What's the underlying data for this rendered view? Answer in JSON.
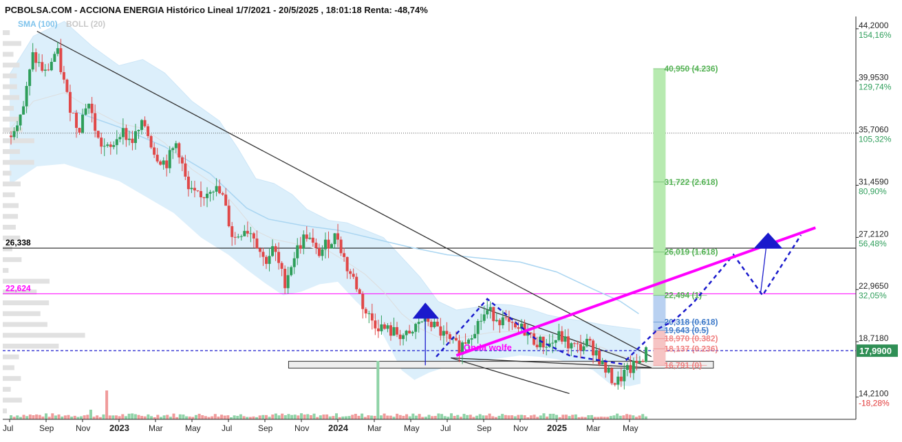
{
  "title": "PCBOLSA.COM - ACCIONA ENERGIA Histórico Lineal 1/7/2021 - 20/5/2025 , 18:01:18 Renta: -48,74%",
  "legend": {
    "sma": "SMA (100)",
    "boll": "BOLL (20)"
  },
  "chart_data": {
    "type": "candlestick",
    "price_axis": [
      {
        "price": 44.2,
        "label": "44,2000",
        "pct": "154,16%"
      },
      {
        "price": 39.953,
        "label": "39,9530",
        "pct": "129,74%"
      },
      {
        "price": 35.706,
        "label": "35,7060",
        "pct": "105,32%"
      },
      {
        "price": 31.459,
        "label": "31,4590",
        "pct": "80,90%"
      },
      {
        "price": 27.212,
        "label": "27,2120",
        "pct": "56,48%"
      },
      {
        "price": 22.965,
        "label": "22,9650",
        "pct": "32,05%"
      },
      {
        "price": 18.718,
        "label": "18,7180",
        "pct": "7,63%"
      },
      {
        "price": 14.21,
        "label": "14,2100",
        "pct": "-18,28%"
      }
    ],
    "ylim": [
      12.4,
      45.2
    ],
    "x_months": 47,
    "x_ticks": [
      {
        "m": 0,
        "label": "Jul",
        "bold": false
      },
      {
        "m": 2,
        "label": "Sep",
        "bold": false
      },
      {
        "m": 4,
        "label": "Nov",
        "bold": false
      },
      {
        "m": 6,
        "label": "2023",
        "bold": true
      },
      {
        "m": 8,
        "label": "Mar",
        "bold": false
      },
      {
        "m": 10,
        "label": "May",
        "bold": false
      },
      {
        "m": 12,
        "label": "Jul",
        "bold": false
      },
      {
        "m": 14,
        "label": "Sep",
        "bold": false
      },
      {
        "m": 16,
        "label": "Nov",
        "bold": false
      },
      {
        "m": 18,
        "label": "2024",
        "bold": true
      },
      {
        "m": 20,
        "label": "Mar",
        "bold": false
      },
      {
        "m": 22,
        "label": "May",
        "bold": false
      },
      {
        "m": 24,
        "label": "Jul",
        "bold": false
      },
      {
        "m": 26,
        "label": "Sep",
        "bold": false
      },
      {
        "m": 28,
        "label": "Nov",
        "bold": false
      },
      {
        "m": 30,
        "label": "2025",
        "bold": true
      },
      {
        "m": 32,
        "label": "Mar",
        "bold": false
      },
      {
        "m": 34,
        "label": "May",
        "bold": false
      }
    ],
    "close_path": [
      [
        0,
        35.5
      ],
      [
        0.8,
        38
      ],
      [
        1.3,
        42
      ],
      [
        2,
        40.5
      ],
      [
        2.6,
        42.5
      ],
      [
        3.2,
        38.5
      ],
      [
        3.8,
        36
      ],
      [
        4.3,
        38.5
      ],
      [
        4.9,
        35
      ],
      [
        5.5,
        34.2
      ],
      [
        6.1,
        36
      ],
      [
        6.7,
        35
      ],
      [
        7.4,
        36.5
      ],
      [
        8,
        34
      ],
      [
        8.6,
        33.2
      ],
      [
        9.2,
        35
      ],
      [
        9.8,
        31
      ],
      [
        10.5,
        30.3
      ],
      [
        11.1,
        31.5
      ],
      [
        11.7,
        30.5
      ],
      [
        12.3,
        27
      ],
      [
        12.9,
        28
      ],
      [
        13.4,
        27.5
      ],
      [
        14,
        25.2
      ],
      [
        14.5,
        26.3
      ],
      [
        15.1,
        23.5
      ],
      [
        15.7,
        26
      ],
      [
        16.3,
        27.5
      ],
      [
        16.9,
        25.8
      ],
      [
        17.5,
        26.8
      ],
      [
        18,
        27.4
      ],
      [
        18.5,
        24.8
      ],
      [
        19,
        23.5
      ],
      [
        19.5,
        21.2
      ],
      [
        20,
        20.3
      ],
      [
        20.5,
        19.8
      ],
      [
        21,
        19.5
      ],
      [
        21.5,
        19.3
      ],
      [
        22,
        19
      ],
      [
        22.4,
        20.3
      ],
      [
        22.9,
        20.6
      ],
      [
        23.4,
        19.8
      ],
      [
        23.8,
        19.3
      ],
      [
        24.2,
        18.6
      ],
      [
        24.7,
        18.2
      ],
      [
        25.2,
        19.2
      ],
      [
        25.7,
        20.2
      ],
      [
        26.2,
        21.2
      ],
      [
        26.7,
        20.8
      ],
      [
        27.2,
        20.3
      ],
      [
        27.7,
        19.6
      ],
      [
        28.2,
        19.8
      ],
      [
        28.7,
        18.9
      ],
      [
        29.2,
        18.6
      ],
      [
        29.7,
        18.5
      ],
      [
        30.2,
        19.2
      ],
      [
        30.7,
        18.4
      ],
      [
        31.2,
        18.2
      ],
      [
        31.7,
        18.6
      ],
      [
        32.2,
        17.9
      ],
      [
        32.6,
        16.6
      ],
      [
        33,
        15.8
      ],
      [
        33.3,
        15.3
      ],
      [
        33.7,
        16.1
      ],
      [
        34.2,
        16.6
      ],
      [
        34.6,
        17.2
      ],
      [
        35,
        17.99
      ]
    ],
    "sma_path": [
      [
        3.5,
        37.5
      ],
      [
        6,
        36.2
      ],
      [
        8.5,
        34.6
      ],
      [
        11,
        32.4
      ],
      [
        13,
        29.6
      ],
      [
        14.2,
        28.7
      ],
      [
        16,
        28.2
      ],
      [
        18,
        27.8
      ],
      [
        20,
        27.1
      ],
      [
        22,
        26.4
      ],
      [
        24,
        25.8
      ],
      [
        26,
        25.5
      ],
      [
        28,
        25.2
      ],
      [
        30,
        24.4
      ],
      [
        32,
        23
      ],
      [
        33.5,
        22
      ],
      [
        34.5,
        21
      ]
    ],
    "bollinger": {
      "upper": [
        [
          0,
          40.5
        ],
        [
          1.3,
          43.6
        ],
        [
          3,
          44.8
        ],
        [
          4.5,
          42.8
        ],
        [
          6,
          41.2
        ],
        [
          7.3,
          41.7
        ],
        [
          8.5,
          40.6
        ],
        [
          10,
          38.3
        ],
        [
          11.5,
          36.7
        ],
        [
          12.5,
          34.5
        ],
        [
          13.5,
          32
        ],
        [
          14.5,
          31.6
        ],
        [
          15.5,
          30.7
        ],
        [
          16.3,
          29.5
        ],
        [
          17.5,
          28.6
        ],
        [
          18.5,
          28.4
        ],
        [
          19.5,
          27.8
        ],
        [
          20.5,
          27.2
        ],
        [
          21.5,
          25.6
        ],
        [
          22.5,
          24
        ],
        [
          23.5,
          22
        ],
        [
          24.5,
          21.3
        ],
        [
          25.5,
          21.5
        ],
        [
          26.5,
          21.8
        ],
        [
          27.5,
          21.7
        ],
        [
          28.5,
          21.4
        ],
        [
          29.5,
          20.9
        ],
        [
          30.5,
          20.6
        ],
        [
          31.5,
          20.4
        ],
        [
          32.5,
          20.1
        ],
        [
          33.5,
          19.9
        ],
        [
          34.6,
          19.7
        ]
      ],
      "lower": [
        [
          0,
          31.5
        ],
        [
          1.5,
          33
        ],
        [
          3,
          33.2
        ],
        [
          4.5,
          32.5
        ],
        [
          6,
          31.8
        ],
        [
          7.5,
          30.5
        ],
        [
          9,
          29.2
        ],
        [
          10.5,
          27.2
        ],
        [
          12,
          25.8
        ],
        [
          13,
          24.6
        ],
        [
          14,
          23.5
        ],
        [
          15,
          22.5
        ],
        [
          16,
          22.8
        ],
        [
          17,
          23.4
        ],
        [
          18,
          23.6
        ],
        [
          19,
          22
        ],
        [
          20,
          20.6
        ],
        [
          20.8,
          18.4
        ],
        [
          21.5,
          16.4
        ],
        [
          22.2,
          15.6
        ],
        [
          23,
          16.2
        ],
        [
          24,
          16.7
        ],
        [
          25,
          17
        ],
        [
          26,
          17.2
        ],
        [
          27,
          17.4
        ],
        [
          28,
          17.6
        ],
        [
          29,
          17.5
        ],
        [
          30,
          17.3
        ],
        [
          31,
          16.9
        ],
        [
          32,
          16.4
        ],
        [
          33,
          15.2
        ],
        [
          34,
          15.1
        ],
        [
          34.6,
          15.3
        ]
      ]
    },
    "horizontal_levels": [
      {
        "price": 26.338,
        "label": "26,338",
        "color": "#000000"
      },
      {
        "price": 22.624,
        "label": "22,624",
        "color": "#ff00ff"
      }
    ],
    "last_price": {
      "price": 17.99,
      "label": "17,9900",
      "color": "#2f8f55"
    },
    "fibonacci": [
      {
        "price": 40.95,
        "label": "40,950 (4.236)",
        "color": "#53b153"
      },
      {
        "price": 31.722,
        "label": "31,722 (2.618)",
        "color": "#53b153"
      },
      {
        "price": 26.019,
        "label": "26,019 (1.618)",
        "color": "#53b153"
      },
      {
        "price": 22.494,
        "label": "22,494 (1)",
        "color": "#53b153"
      },
      {
        "price": 20.318,
        "label": "20,318 (0.618)",
        "color": "#3b78c8"
      },
      {
        "price": 19.643,
        "label": "19,643 (0.5)",
        "color": "#3b78c8"
      },
      {
        "price": 18.97,
        "label": "18,970 (0.382)",
        "color": "#f08080"
      },
      {
        "price": 18.137,
        "label": "18,137 (0.236)",
        "color": "#f08080"
      },
      {
        "price": 16.791,
        "label": "16,791 (0)",
        "color": "#f08080"
      }
    ],
    "annotation": {
      "text": "Onda wolfe",
      "color": "#ff00ff"
    }
  }
}
